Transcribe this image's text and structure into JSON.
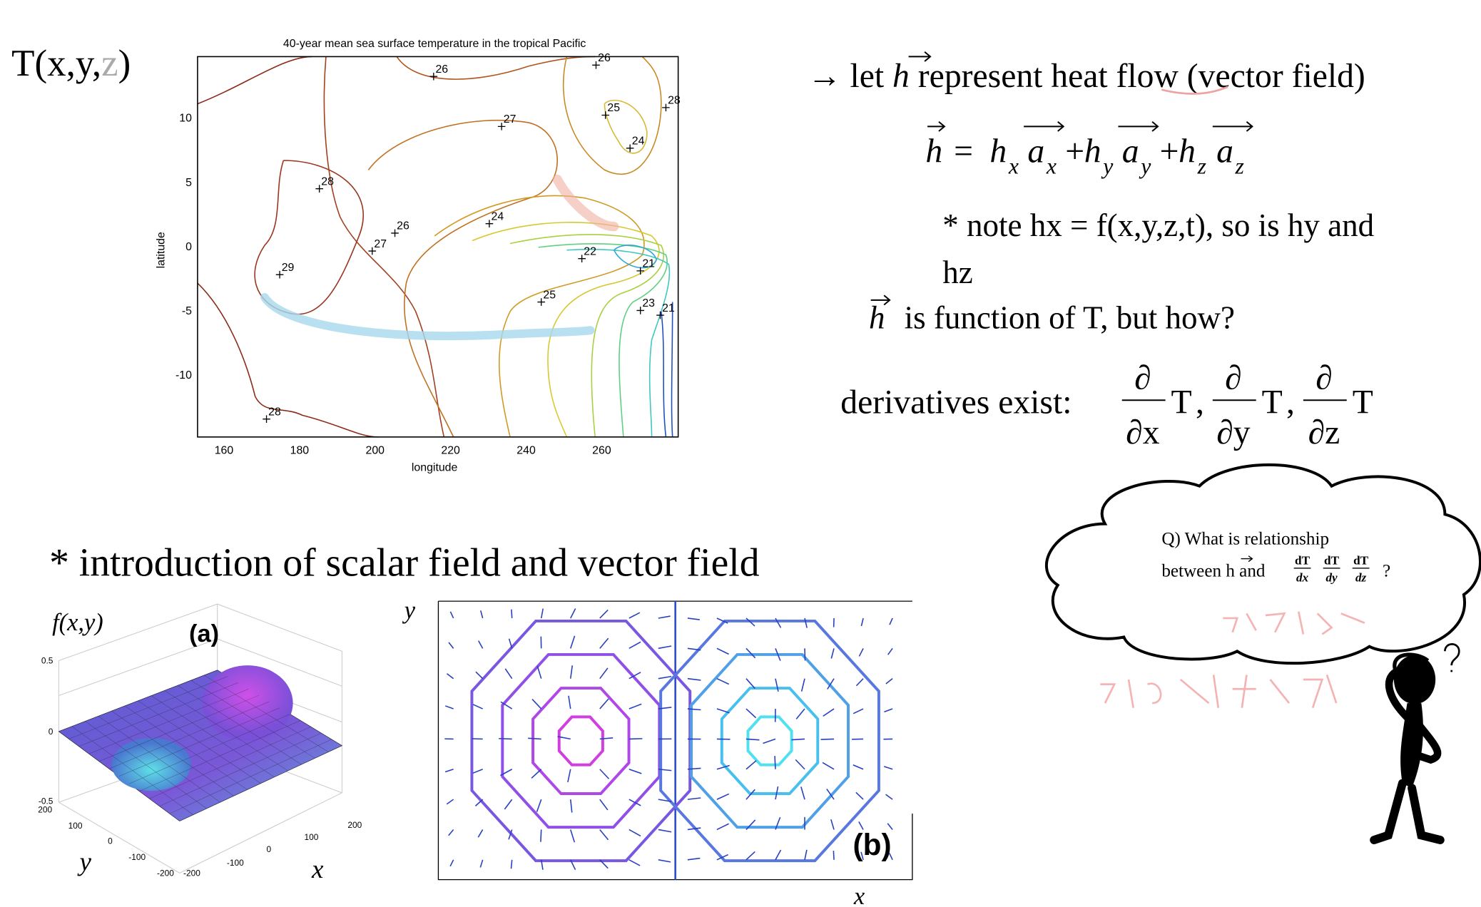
{
  "heading": [
    "T(x,y,",
    "z",
    ")"
  ],
  "sst_plot": {
    "title": "40-year mean sea surface temperature in the tropical Pacific",
    "x_label": "longitude",
    "y_label": "latitude",
    "x_ticks": [
      "160",
      "180",
      "200",
      "220",
      "240",
      "260"
    ],
    "y_ticks": [
      "10",
      "5",
      "0",
      "-5",
      "-10"
    ],
    "contour_labels": [
      "26",
      "26",
      "27",
      "25",
      "28",
      "24",
      "28",
      "26",
      "24",
      "27",
      "22",
      "21",
      "29",
      "25",
      "23",
      "21",
      "28"
    ]
  },
  "heat_flow": {
    "intro": {
      "prefix": "→ let",
      "vec": "h",
      "rest": "represent heat flow (vector field)"
    },
    "equation": {
      "lhs": "h",
      "eq": "=",
      "plus": "+",
      "terms": [
        {
          "comp": "h",
          "comp_sub": "x",
          "unit": "a",
          "unit_sub": "x"
        },
        {
          "comp": "h",
          "comp_sub": "y",
          "unit": "a",
          "unit_sub": "y"
        },
        {
          "comp": "h",
          "comp_sub": "z",
          "unit": "a",
          "unit_sub": "z"
        }
      ]
    },
    "note": [
      "* note hx = f(x,y,z,t), so is hy and",
      "hz"
    ],
    "function_of": {
      "vec": "h",
      "rest": "is function of  T, but how?"
    },
    "derivatives": {
      "label": "derivatives exist:",
      "partial": "∂",
      "denominators": [
        "∂x",
        "∂y",
        "∂z"
      ],
      "variable": "T",
      "separator": ","
    }
  },
  "section": "* introduction of scalar field and vector field",
  "surface_plot": {
    "z_label": "f(x,y)",
    "panel": "(a)",
    "z_ticks": [
      "0.5",
      "0",
      "-0.5"
    ],
    "y_ticks": [
      "200",
      "100",
      "0",
      "-100",
      "-200"
    ],
    "x_ticks": [
      "-200",
      "-100",
      "0",
      "100",
      "200"
    ],
    "x_label": "x",
    "y_label": "y"
  },
  "vector_plot": {
    "panel": "(b)",
    "x_label": "x",
    "y_label": "y"
  },
  "question": {
    "line1": "Q) What is relationship",
    "between": "between",
    "vec": "h",
    "and": "and",
    "numerator": "dT",
    "denominators": [
      "dx",
      "dy",
      "dz"
    ],
    "end": "?"
  }
}
